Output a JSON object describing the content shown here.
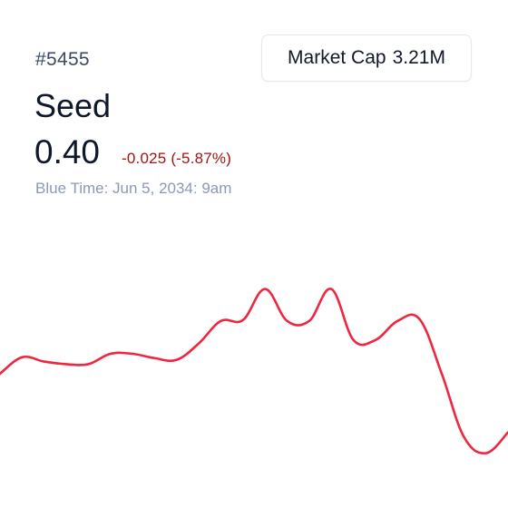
{
  "asset": {
    "ticker": "#5455",
    "name": "Seed",
    "price": "0.40",
    "change": "-0.025 (-5.87%)",
    "timestamp": "Blue Time: Jun 5, 2034: 9am"
  },
  "market_cap": {
    "label": "Market Cap",
    "value": "3.21M"
  },
  "colors": {
    "line": "#f0253f",
    "negative": "#a31414"
  },
  "chart_data": {
    "type": "line",
    "series": [
      {
        "values": [
          0.468,
          0.487,
          0.482,
          0.479,
          0.479,
          0.491,
          0.491,
          0.486,
          0.484,
          0.503,
          0.529,
          0.53,
          0.566,
          0.529,
          0.529,
          0.566,
          0.507,
          0.507,
          0.529,
          0.531,
          0.468,
          0.395,
          0.376,
          0.4
        ]
      }
    ]
  }
}
